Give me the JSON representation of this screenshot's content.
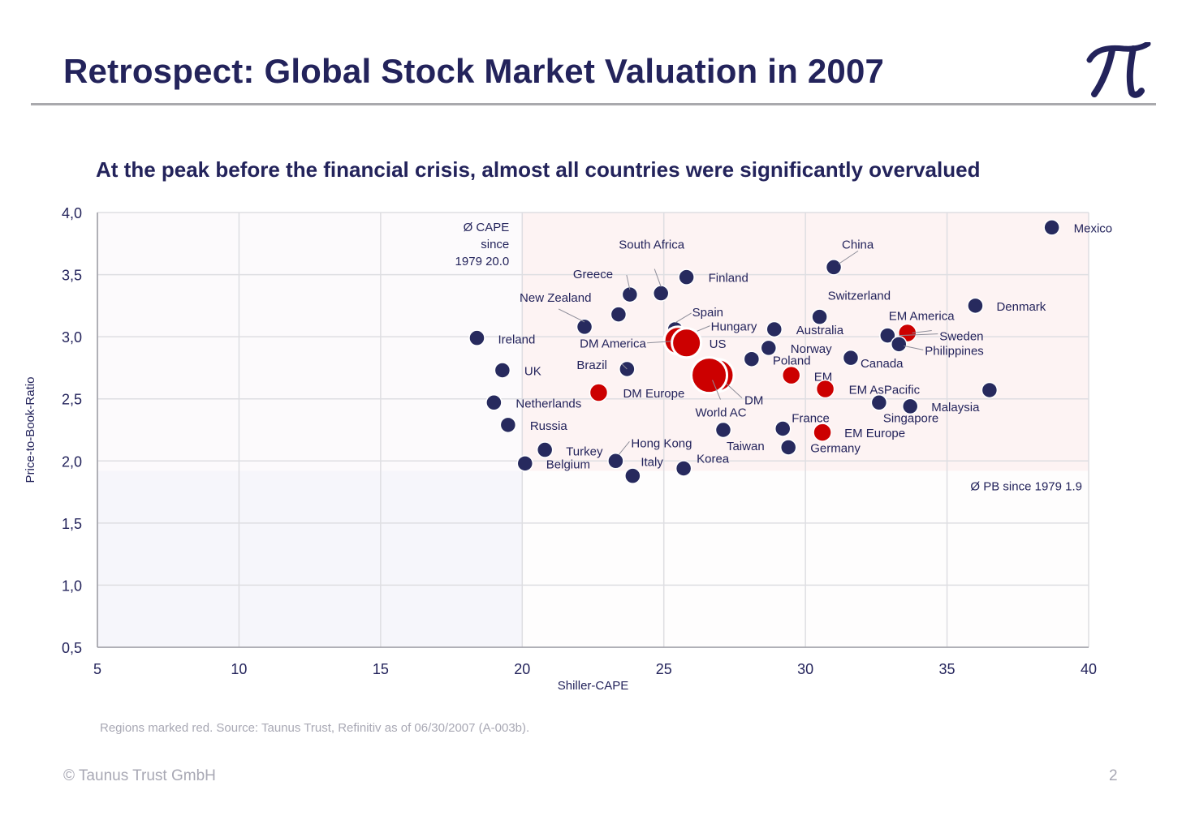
{
  "header": {
    "title": "Retrospect: Global Stock Market Valuation in 2007",
    "logo_icon": "pi-logo-icon"
  },
  "subtitle": "At the peak before the financial crisis, almost all countries were significantly overvalued",
  "footer": {
    "source": "Regions marked red. Source: Taunus Trust, Refinitiv as of 06/30/2007 (A-003b).",
    "copyright": "© Taunus Trust GmbH",
    "page": "2"
  },
  "colors": {
    "country": "#272a5e",
    "region": "#cc0000",
    "overvalued_zone": "#fdf3f3",
    "undervalued_zone": "#f6f6fb",
    "grid": "#dedee2",
    "text": "#23235b"
  },
  "chart_data": {
    "type": "scatter",
    "title": "At the peak before the financial crisis, almost all countries were significantly overvalued",
    "xlabel": "Shiller-CAPE",
    "ylabel": "Price-to-Book-Ratio",
    "xlim": [
      5,
      40
    ],
    "ylim": [
      0.5,
      4.0
    ],
    "x_ticks": [
      "5",
      "10",
      "15",
      "20",
      "25",
      "30",
      "35",
      "40"
    ],
    "y_ticks": [
      "0,5",
      "1,0",
      "1,5",
      "2,0",
      "2,5",
      "3,0",
      "3,5",
      "4,0"
    ],
    "grid": true,
    "reference_lines": {
      "avg_cape": {
        "value": 20.0,
        "label": [
          "Ø CAPE",
          "since",
          "1979 20.0"
        ]
      },
      "avg_pb": {
        "value": 1.92,
        "label": "Ø PB since 1979 1.9"
      }
    },
    "points": [
      {
        "name": "Mexico",
        "x": 38.7,
        "y": 3.88,
        "region": false
      },
      {
        "name": "China",
        "x": 31.0,
        "y": 3.56,
        "region": false
      },
      {
        "name": "South Africa",
        "x": 24.9,
        "y": 3.35,
        "region": false
      },
      {
        "name": "Finland",
        "x": 25.8,
        "y": 3.48,
        "region": false
      },
      {
        "name": "Greece",
        "x": 23.8,
        "y": 3.34,
        "region": false
      },
      {
        "name": "New Zealand",
        "x": 22.2,
        "y": 3.08,
        "region": false
      },
      {
        "name": "",
        "x": 23.4,
        "y": 3.18,
        "region": false
      },
      {
        "name": "Spain",
        "x": 25.4,
        "y": 3.06,
        "region": false
      },
      {
        "name": "Hungary",
        "x": 25.6,
        "y": 3.01,
        "region": false
      },
      {
        "name": "DM America",
        "x": 25.5,
        "y": 2.97,
        "region": true
      },
      {
        "name": "US",
        "x": 25.8,
        "y": 2.95,
        "region": true
      },
      {
        "name": "Switzerland",
        "x": 30.5,
        "y": 3.16,
        "region": false
      },
      {
        "name": "Australia",
        "x": 28.9,
        "y": 3.06,
        "region": false
      },
      {
        "name": "Norway",
        "x": 28.7,
        "y": 2.91,
        "region": false
      },
      {
        "name": "Poland",
        "x": 28.1,
        "y": 2.82,
        "region": false
      },
      {
        "name": "Denmark",
        "x": 36.0,
        "y": 3.25,
        "region": false
      },
      {
        "name": "EM America",
        "x": 33.6,
        "y": 3.03,
        "region": true
      },
      {
        "name": "Sweden",
        "x": 32.9,
        "y": 3.01,
        "region": false
      },
      {
        "name": "Philippines",
        "x": 33.3,
        "y": 2.94,
        "region": false
      },
      {
        "name": "Canada",
        "x": 31.6,
        "y": 2.83,
        "region": false
      },
      {
        "name": "Ireland",
        "x": 18.4,
        "y": 2.99,
        "region": false
      },
      {
        "name": "UK",
        "x": 19.3,
        "y": 2.73,
        "region": false
      },
      {
        "name": "Brazil",
        "x": 23.7,
        "y": 2.74,
        "region": false
      },
      {
        "name": "DM Europe",
        "x": 22.7,
        "y": 2.55,
        "region": true
      },
      {
        "name": "DM",
        "x": 26.9,
        "y": 2.69,
        "region": true
      },
      {
        "name": "World AC",
        "x": 26.6,
        "y": 2.69,
        "region": true
      },
      {
        "name": "EM",
        "x": 29.5,
        "y": 2.69,
        "region": true
      },
      {
        "name": "EM AsPacific",
        "x": 30.7,
        "y": 2.58,
        "region": true
      },
      {
        "name": "",
        "x": 36.5,
        "y": 2.57,
        "region": false
      },
      {
        "name": "Netherlands",
        "x": 19.0,
        "y": 2.47,
        "region": false
      },
      {
        "name": "Singapore",
        "x": 32.6,
        "y": 2.47,
        "region": false
      },
      {
        "name": "Malaysia",
        "x": 33.7,
        "y": 2.44,
        "region": false
      },
      {
        "name": "Russia",
        "x": 19.5,
        "y": 2.29,
        "region": false
      },
      {
        "name": "Taiwan",
        "x": 27.1,
        "y": 2.25,
        "region": false
      },
      {
        "name": "France",
        "x": 29.2,
        "y": 2.26,
        "region": false
      },
      {
        "name": "EM Europe",
        "x": 30.6,
        "y": 2.23,
        "region": true
      },
      {
        "name": "Turkey",
        "x": 20.8,
        "y": 2.09,
        "region": false
      },
      {
        "name": "Germany",
        "x": 29.4,
        "y": 2.11,
        "region": false
      },
      {
        "name": "Hong Kong",
        "x": 23.3,
        "y": 2.0,
        "region": false
      },
      {
        "name": "Belgium",
        "x": 20.1,
        "y": 1.98,
        "region": false
      },
      {
        "name": "Korea",
        "x": 25.7,
        "y": 1.94,
        "region": false
      },
      {
        "name": "Italy",
        "x": 23.9,
        "y": 1.88,
        "region": false
      }
    ]
  }
}
